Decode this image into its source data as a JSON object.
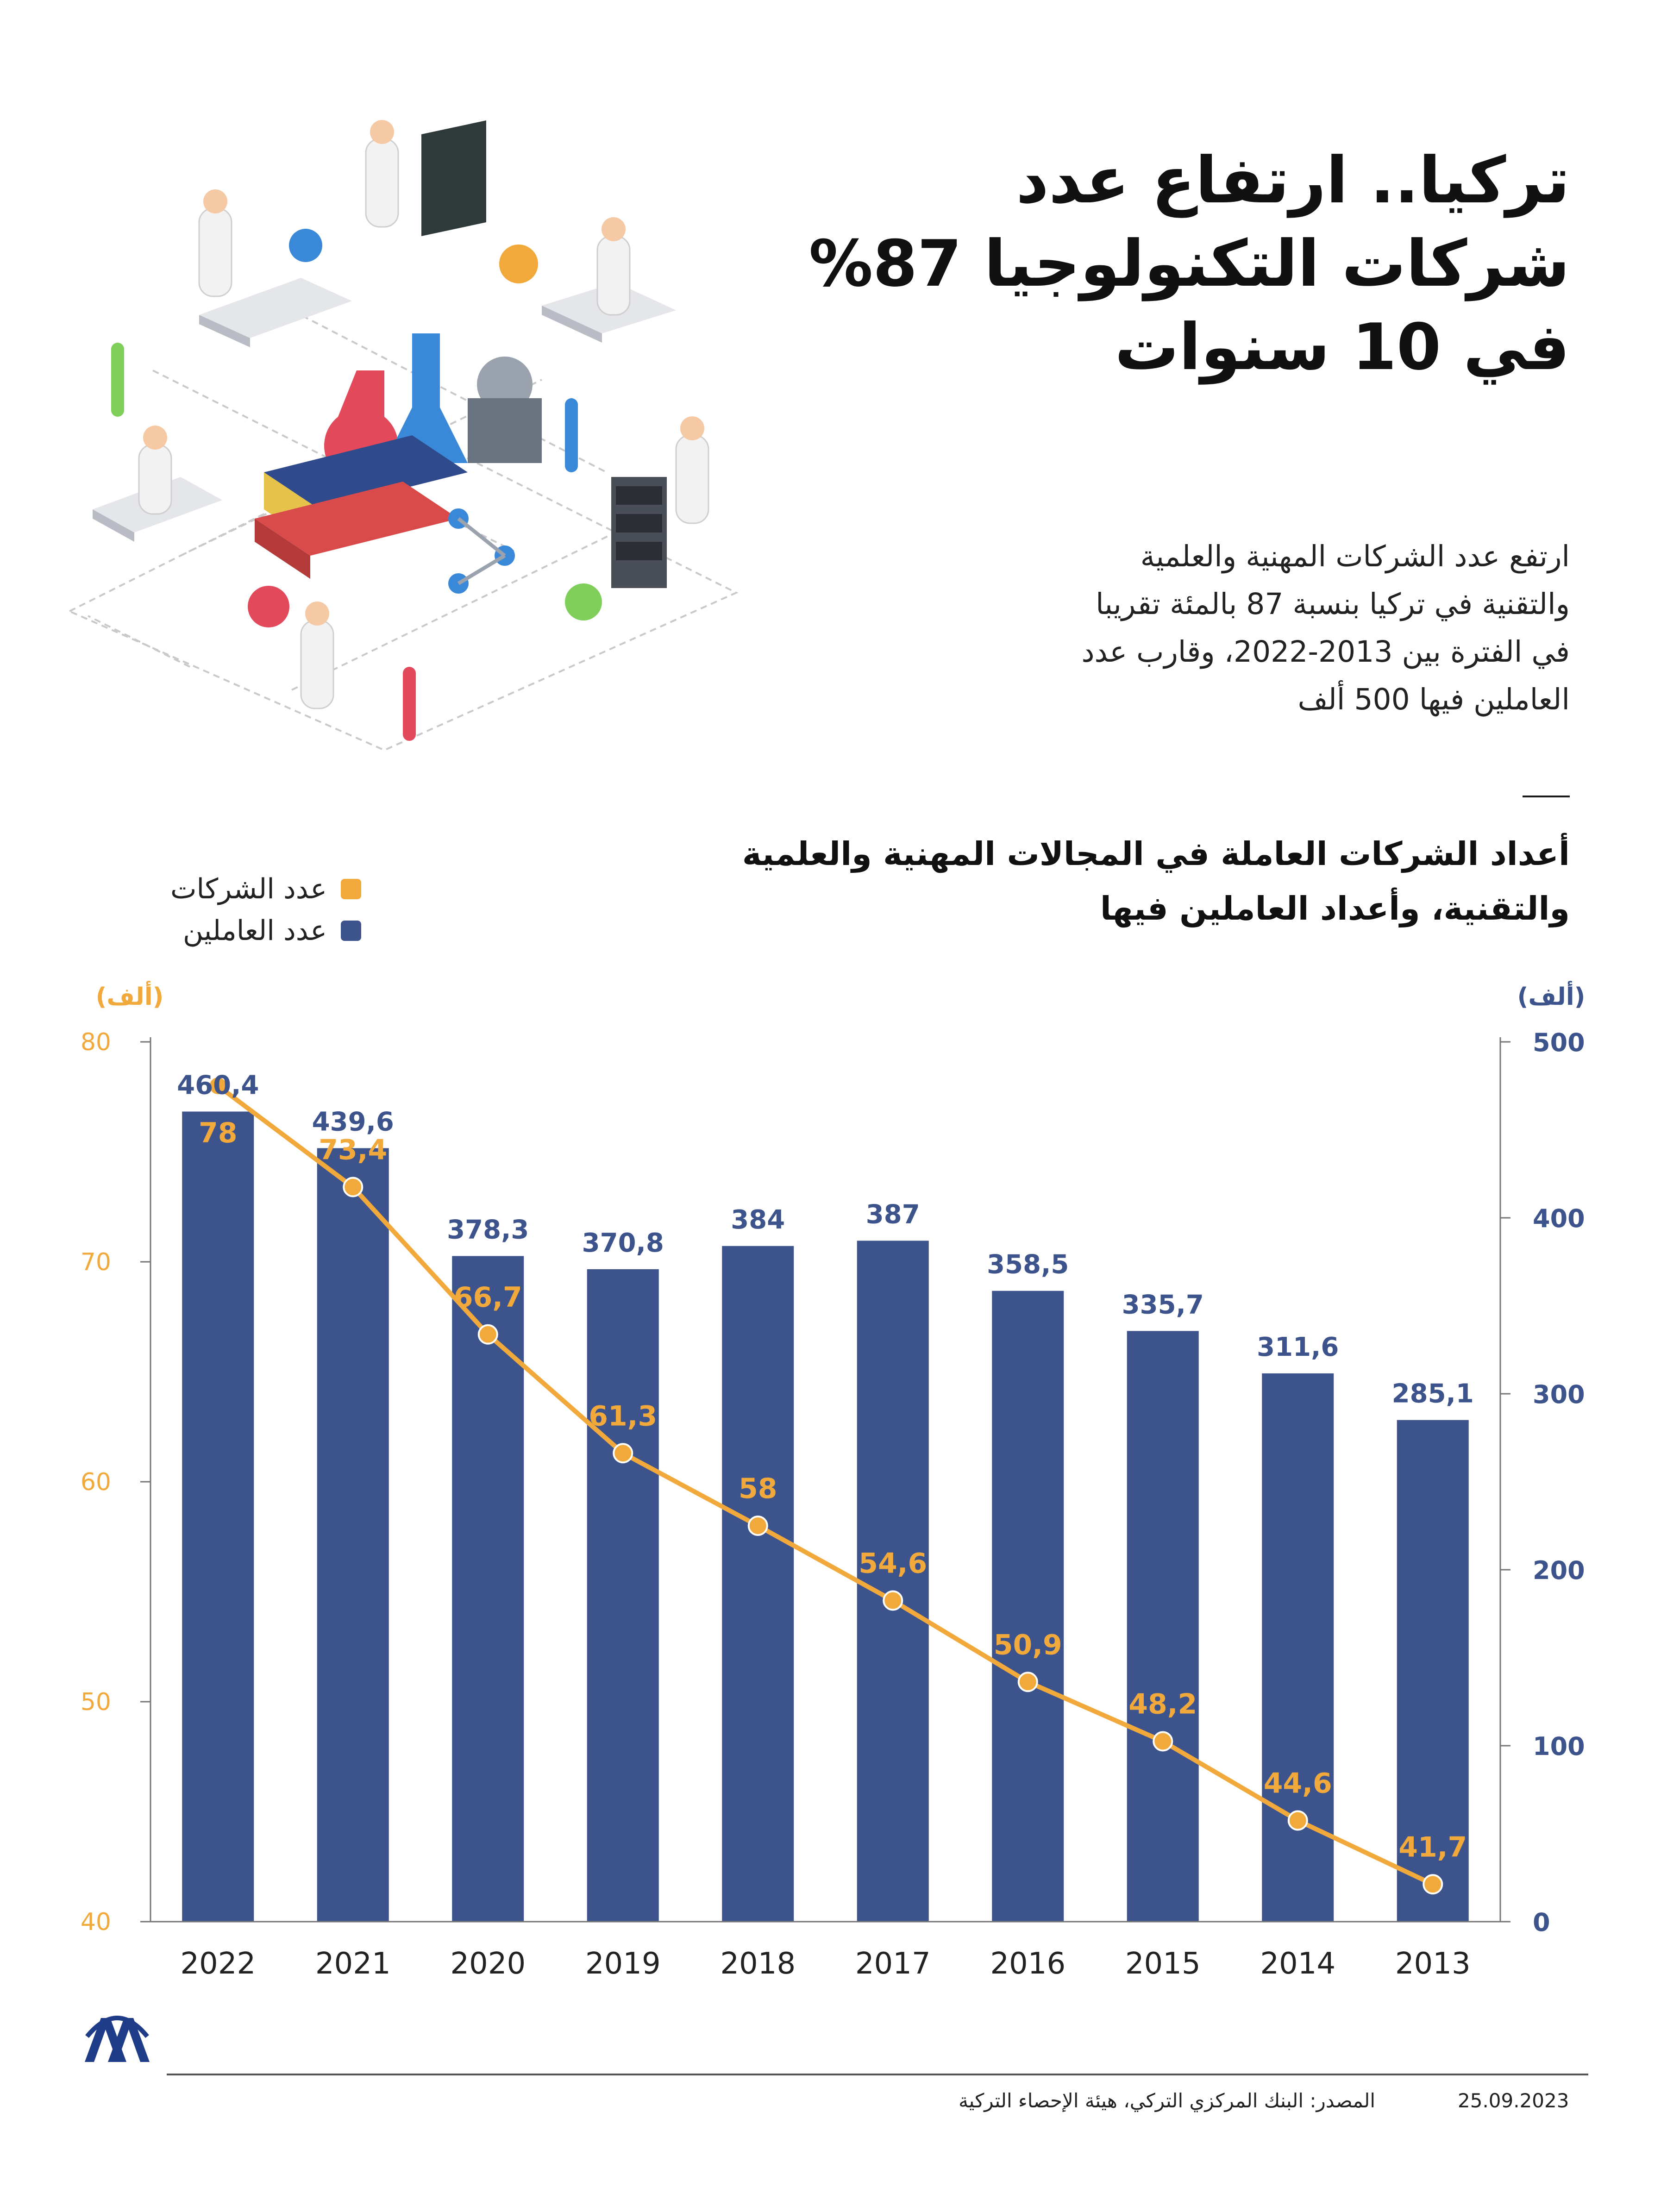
{
  "headline": {
    "lines": [
      "تركيا.. ارتفاع عدد",
      "شركات التكنولوجيا 87%",
      "في 10 سنوات"
    ]
  },
  "lead": {
    "lines": [
      "ارتفع عدد الشركات المهنية والعلمية",
      "والتقنية في تركيا بنسبة 87 بالمئة تقريبا",
      "في الفترة بين 2013-2022، وقارب عدد",
      "العاملين فيها 500 ألف"
    ]
  },
  "chart_title": {
    "lines": [
      "أعداد الشركات العاملة في المجالات المهنية والعلمية",
      "والتقنية، وأعداد العاملين فيها"
    ]
  },
  "legend": {
    "companies": "عدد الشركات",
    "workers": "عدد العاملين"
  },
  "colors": {
    "companies": "#F2A93B",
    "workers": "#3D538B",
    "axis": "#666666"
  },
  "chart_data": {
    "type": "bar",
    "categories": [
      "2022",
      "2021",
      "2020",
      "2019",
      "2018",
      "2017",
      "2016",
      "2015",
      "2014",
      "2013"
    ],
    "series": [
      {
        "name": "عدد العاملين",
        "type": "bar",
        "axis": "right",
        "values": [
          460.4,
          439.6,
          378.3,
          370.8,
          384,
          387,
          358.5,
          335.7,
          311.6,
          285.1
        ],
        "labels": [
          "460,4",
          "439,6",
          "378,3",
          "370,8",
          "384",
          "387",
          "358,5",
          "335,7",
          "311,6",
          "285,1"
        ]
      },
      {
        "name": "عدد الشركات",
        "type": "line",
        "axis": "left",
        "values": [
          78,
          73.4,
          66.7,
          61.3,
          58,
          54.6,
          50.9,
          48.2,
          44.6,
          41.7
        ],
        "labels": [
          "78",
          "73,4",
          "66,7",
          "61,3",
          "58",
          "54,6",
          "50,9",
          "48,2",
          "44,6",
          "41,7"
        ]
      }
    ],
    "left_axis": {
      "unit": "(ألف)",
      "ylim": [
        40,
        80
      ],
      "ticks": [
        "40",
        "50",
        "60",
        "70",
        "80"
      ]
    },
    "right_axis": {
      "unit": "(ألف)",
      "ylim": [
        0,
        500
      ],
      "ticks": [
        "0",
        "100",
        "200",
        "300",
        "400",
        "500"
      ]
    }
  },
  "footer": {
    "date": "25.09.2023",
    "source": "المصدر: البنك المركزي التركي، هيئة الإحصاء التركية",
    "logo_text": "AA"
  }
}
